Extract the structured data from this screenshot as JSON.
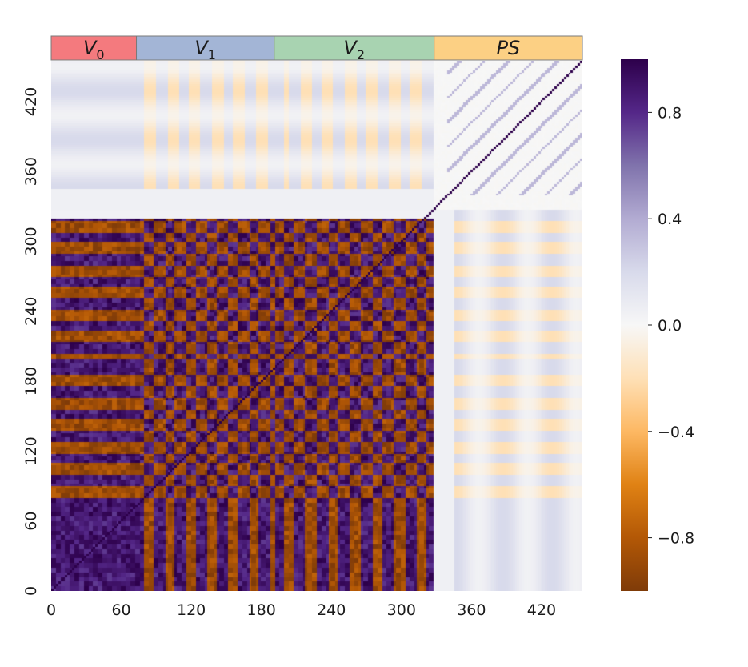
{
  "chart_data": {
    "type": "heatmap",
    "matrix_size": 455,
    "colormap": "PuOr",
    "colors": {
      "negative_end": "#7f3b08",
      "neutral": "#f7f7f7",
      "positive_end": "#2d004b"
    },
    "x_ticks": [
      0,
      60,
      120,
      180,
      240,
      300,
      360,
      420
    ],
    "y_ticks": [
      0,
      60,
      120,
      180,
      240,
      300,
      360,
      420
    ],
    "blocks": [
      {
        "name": "V",
        "subscript": "0",
        "start": 0,
        "end": 73,
        "color": "#f47a7e"
      },
      {
        "name": "V",
        "subscript": "1",
        "start": 73,
        "end": 191,
        "color": "#a3b5d6"
      },
      {
        "name": "V",
        "subscript": "2",
        "start": 191,
        "end": 328,
        "color": "#a8d3b1"
      },
      {
        "name": "PS",
        "subscript": "",
        "start": 328,
        "end": 455,
        "color": "#fcd084"
      }
    ],
    "colorbar": {
      "min": -1.0,
      "max": 1.0,
      "ticks": [
        0.8,
        0.4,
        0.0,
        -0.4,
        -0.8
      ],
      "tick_labels": [
        "0.8",
        "0.4",
        "0.0",
        "−0.4",
        "−0.8"
      ]
    }
  }
}
